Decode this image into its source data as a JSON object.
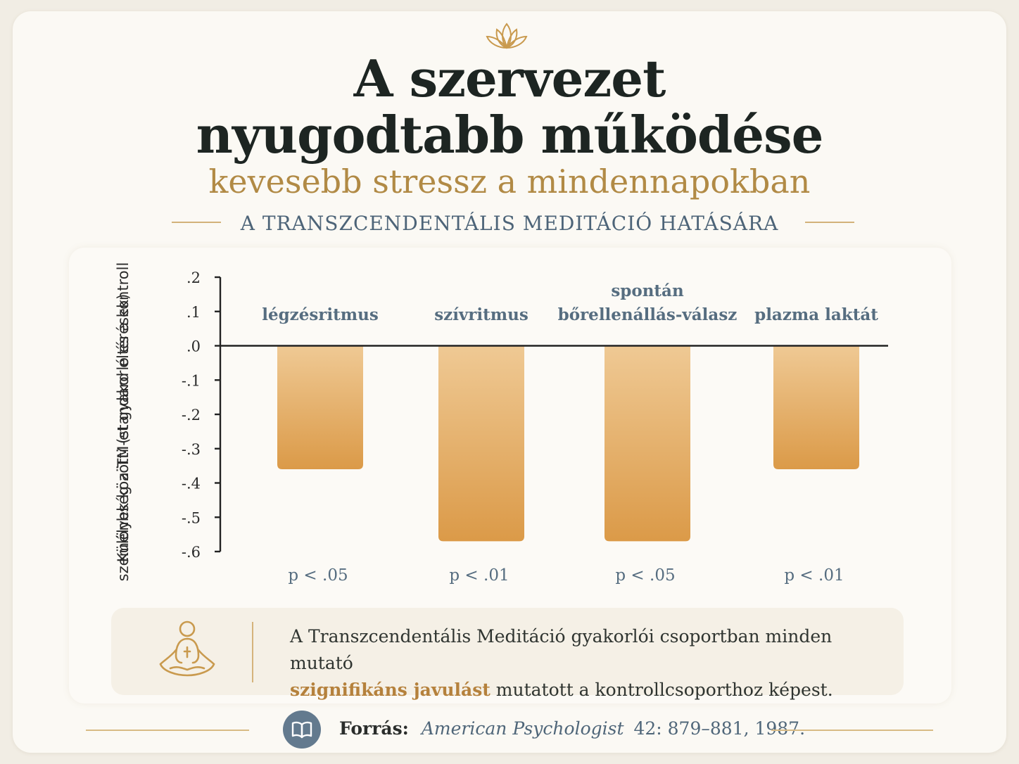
{
  "header": {
    "title_line1": "A szervezet",
    "title_line2": "nyugodtabb működése",
    "subtitle": "kevesebb stressz a mindennapokban",
    "kicker": "A TRANSZCENDENTÁLIS MEDITÁCIÓ HATÁSÁRA"
  },
  "chart_data": {
    "type": "bar",
    "ylabel_line1": "Különbség a TM-et gyakorló és a kontroll",
    "ylabel_line2": "személyek közötti (standard eltérések)",
    "ylim": [
      -0.6,
      0.2
    ],
    "yticks": [
      0.2,
      0.1,
      0.0,
      -0.1,
      -0.2,
      -0.3,
      -0.4,
      -0.5,
      -0.6
    ],
    "ytick_labels": [
      ".2",
      ".1",
      ".0",
      "-.1",
      "-.2",
      "-.3",
      "-.4",
      "-.5",
      "-.6"
    ],
    "categories": [
      [
        "légzésritmus"
      ],
      [
        "szívritmus"
      ],
      [
        "spontán",
        "bőrellenállás-válasz"
      ],
      [
        "plazma laktát"
      ]
    ],
    "values": [
      -0.36,
      -0.57,
      -0.57,
      -0.36
    ],
    "pvalues": [
      "p < .05",
      "p < .01",
      "p < .05",
      "p < .01"
    ],
    "bar_color_top": "#efc994",
    "bar_color_bottom": "#db9a48",
    "grid": false
  },
  "note": {
    "line1": "A Transzcendentális Meditáció gyakorlói csoportban minden mutató",
    "highlight": "szignifikáns javulást",
    "line2_rest": " mutatott a kontrollcsoporthoz képest.",
    "icon": "meditating-person-icon"
  },
  "source": {
    "label": "Forrás:",
    "journal": "American Psychologist",
    "details": "42: 879–881, 1987.",
    "icon": "book-icon"
  },
  "colors": {
    "accent_gold": "#b18a45",
    "slate": "#4d6478",
    "title": "#1d2522"
  }
}
